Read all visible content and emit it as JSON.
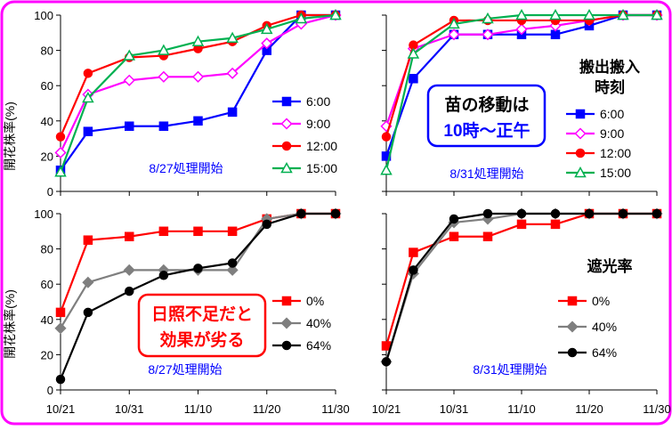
{
  "y_axis_label": "開花株率(%)",
  "x_tick_labels": [
    "10/21",
    "10/31",
    "11/10",
    "11/20",
    "11/30"
  ],
  "y_tick_labels": [
    "0",
    "20",
    "40",
    "60",
    "80",
    "100"
  ],
  "colors": {
    "red": "#ff0000",
    "blue": "#0000ff",
    "magenta": "#ff00ff",
    "green": "#00b050",
    "gray": "#7f7f7f",
    "black": "#000000",
    "frame": "#ff00ff"
  },
  "chart_data": [
    {
      "type": "line",
      "note": "8/27処理開始",
      "ylabel": "開花株率(%)",
      "ylim": [
        0,
        100
      ],
      "xlim": [
        "10/21",
        "11/30"
      ],
      "x": [
        "10/21",
        "10/25",
        "10/31",
        "11/05",
        "11/10",
        "11/15",
        "11/20",
        "11/25",
        "11/30"
      ],
      "series": [
        {
          "name": "6:00",
          "color": "#0000ff",
          "marker": "square",
          "values": [
            12,
            34,
            37,
            37,
            40,
            45,
            80,
            100,
            100
          ]
        },
        {
          "name": "9:00",
          "color": "#ff00ff",
          "marker": "diamond-open",
          "values": [
            22,
            55,
            63,
            65,
            65,
            67,
            84,
            95,
            100
          ]
        },
        {
          "name": "12:00",
          "color": "#ff0000",
          "marker": "circle",
          "values": [
            31,
            67,
            76,
            77,
            81,
            85,
            94,
            100,
            100
          ]
        },
        {
          "name": "15:00",
          "color": "#00b050",
          "marker": "triangle-open",
          "values": [
            11,
            53,
            77,
            80,
            85,
            87,
            92,
            98,
            100
          ]
        }
      ]
    },
    {
      "type": "line",
      "note": "8/31処理開始",
      "legend_title": "搬出搬入\n時刻",
      "callout": "苗の移動は\n10時～正午",
      "ylim": [
        0,
        100
      ],
      "xlim": [
        "10/21",
        "11/30"
      ],
      "x": [
        "10/21",
        "10/25",
        "10/31",
        "11/05",
        "11/10",
        "11/15",
        "11/20",
        "11/25",
        "11/30"
      ],
      "series": [
        {
          "name": "6:00",
          "color": "#0000ff",
          "marker": "square",
          "values": [
            20,
            64,
            89,
            89,
            89,
            89,
            94,
            100,
            100
          ]
        },
        {
          "name": "9:00",
          "color": "#ff00ff",
          "marker": "diamond-open",
          "values": [
            37,
            81,
            89,
            89,
            92,
            94,
            97,
            100,
            100
          ]
        },
        {
          "name": "12:00",
          "color": "#ff0000",
          "marker": "circle",
          "values": [
            31,
            83,
            97,
            97,
            97,
            97,
            97,
            100,
            100
          ]
        },
        {
          "name": "15:00",
          "color": "#00b050",
          "marker": "triangle-open",
          "values": [
            12,
            78,
            95,
            98,
            100,
            100,
            100,
            100,
            100
          ]
        }
      ]
    },
    {
      "type": "line",
      "note": "8/27処理開始",
      "callout": "日照不足だと\n効果が劣る",
      "ylabel": "開花株率(%)",
      "ylim": [
        0,
        100
      ],
      "xlim": [
        "10/21",
        "11/30"
      ],
      "x": [
        "10/21",
        "10/25",
        "10/31",
        "11/05",
        "11/10",
        "11/15",
        "11/20",
        "11/25",
        "11/30"
      ],
      "series": [
        {
          "name": "0%",
          "color": "#ff0000",
          "marker": "square",
          "values": [
            44,
            85,
            87,
            90,
            90,
            90,
            97,
            100,
            100
          ]
        },
        {
          "name": "40%",
          "color": "#7f7f7f",
          "marker": "diamond",
          "values": [
            35,
            61,
            68,
            68,
            68,
            68,
            97,
            100,
            100
          ]
        },
        {
          "name": "64%",
          "color": "#000000",
          "marker": "circle",
          "values": [
            6,
            44,
            56,
            65,
            69,
            72,
            94,
            100,
            100
          ]
        }
      ]
    },
    {
      "type": "line",
      "note": "8/31処理開始",
      "legend_title": "遮光率",
      "ylim": [
        0,
        100
      ],
      "xlim": [
        "10/21",
        "11/30"
      ],
      "x": [
        "10/21",
        "10/25",
        "10/31",
        "11/05",
        "11/10",
        "11/15",
        "11/20",
        "11/25",
        "11/30"
      ],
      "series": [
        {
          "name": "0%",
          "color": "#ff0000",
          "marker": "square",
          "values": [
            25,
            78,
            87,
            87,
            94,
            94,
            100,
            100,
            100
          ]
        },
        {
          "name": "40%",
          "color": "#7f7f7f",
          "marker": "diamond",
          "values": [
            16,
            66,
            95,
            97,
            100,
            100,
            100,
            100,
            100
          ]
        },
        {
          "name": "64%",
          "color": "#000000",
          "marker": "circle",
          "values": [
            16,
            68,
            97,
            100,
            100,
            100,
            100,
            100,
            100
          ]
        }
      ]
    }
  ]
}
